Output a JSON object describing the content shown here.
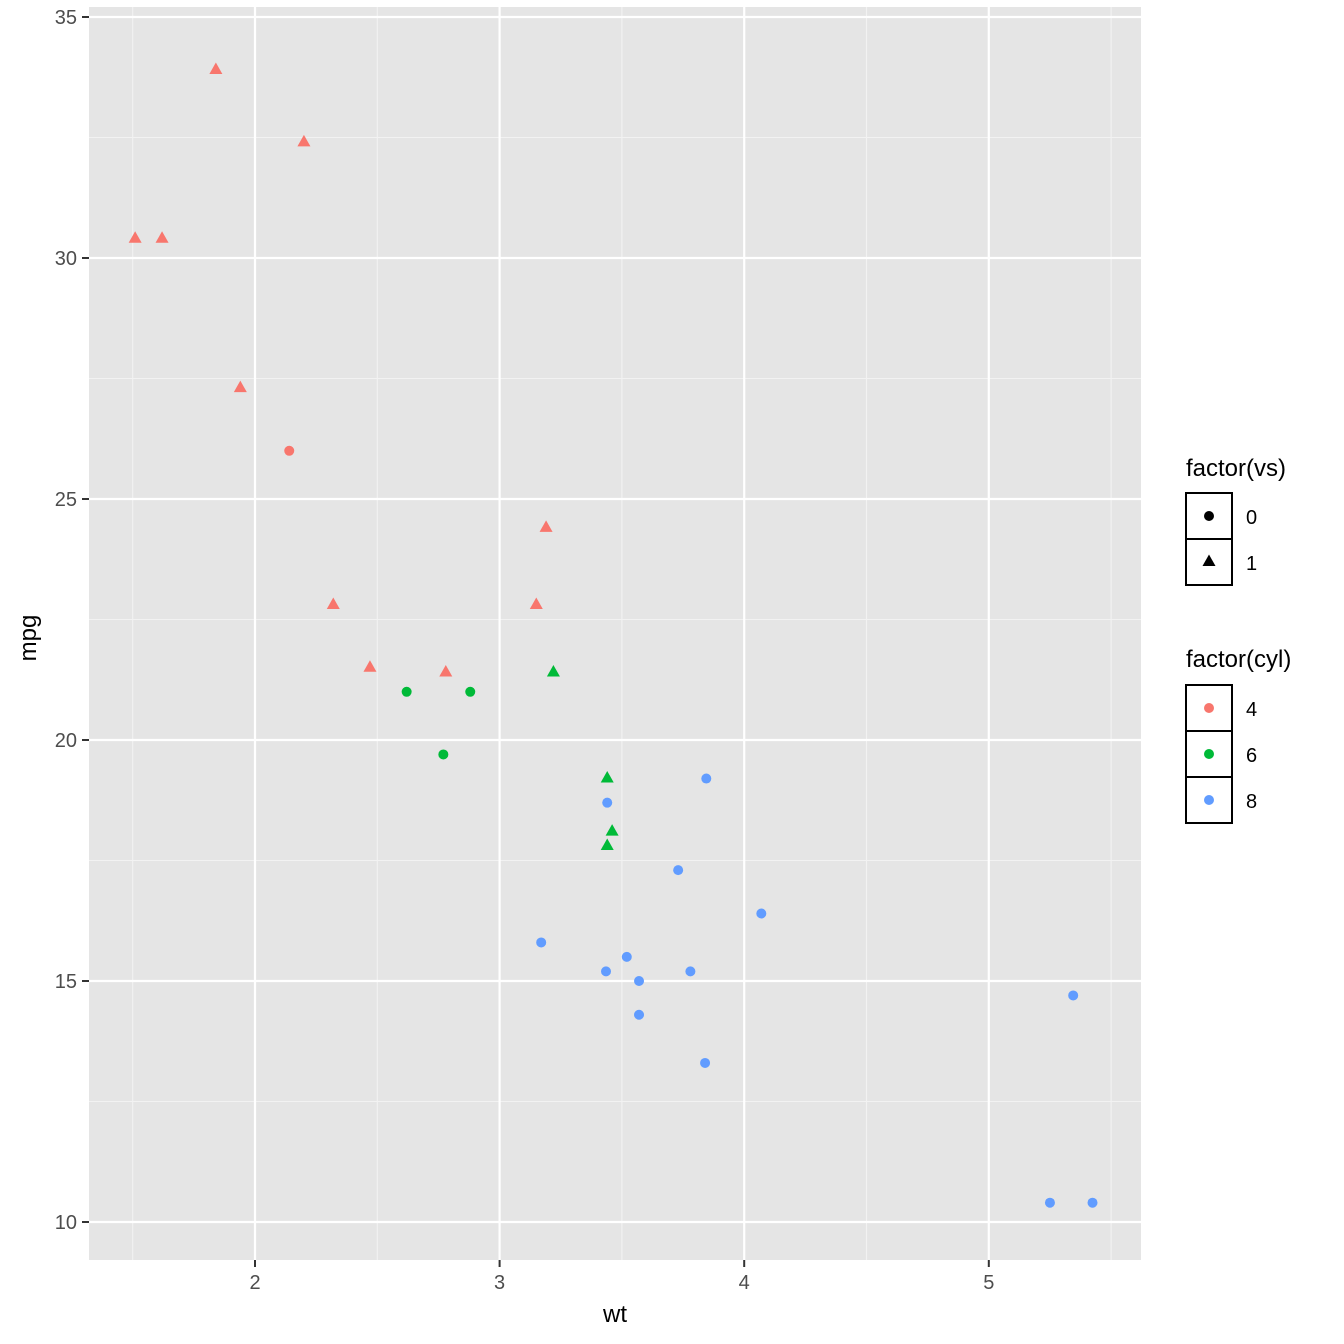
{
  "chart_data": {
    "type": "scatter",
    "xlabel": "wt",
    "ylabel": "mpg",
    "xlim": [
      1.3,
      5.6
    ],
    "ylim": [
      8.5,
      35.3
    ],
    "x_ticks": [
      2,
      3,
      4,
      5
    ],
    "y_ticks": [
      10,
      15,
      20,
      25,
      30,
      35
    ],
    "grid": true,
    "panel_background": "#e5e5e5",
    "legend_position": "right",
    "legends": [
      {
        "title": "factor(vs)",
        "aesthetic": "shape",
        "entries": [
          {
            "label": "0",
            "shape": "circle"
          },
          {
            "label": "1",
            "shape": "triangle"
          }
        ]
      },
      {
        "title": "factor(cyl)",
        "aesthetic": "color",
        "entries": [
          {
            "label": "4",
            "color": "#F8766D"
          },
          {
            "label": "6",
            "color": "#00BA38"
          },
          {
            "label": "8",
            "color": "#619CFF"
          }
        ]
      }
    ],
    "points": [
      {
        "x": 1.51,
        "y": 30.4,
        "cyl": "4",
        "vs": "1"
      },
      {
        "x": 1.62,
        "y": 30.4,
        "cyl": "4",
        "vs": "1"
      },
      {
        "x": 1.84,
        "y": 33.9,
        "cyl": "4",
        "vs": "1"
      },
      {
        "x": 1.94,
        "y": 27.3,
        "cyl": "4",
        "vs": "1"
      },
      {
        "x": 2.14,
        "y": 26.0,
        "cyl": "4",
        "vs": "0"
      },
      {
        "x": 2.2,
        "y": 32.4,
        "cyl": "4",
        "vs": "1"
      },
      {
        "x": 2.32,
        "y": 22.8,
        "cyl": "4",
        "vs": "1"
      },
      {
        "x": 2.47,
        "y": 21.5,
        "cyl": "4",
        "vs": "1"
      },
      {
        "x": 2.78,
        "y": 21.4,
        "cyl": "4",
        "vs": "1"
      },
      {
        "x": 3.15,
        "y": 22.8,
        "cyl": "4",
        "vs": "1"
      },
      {
        "x": 3.19,
        "y": 24.4,
        "cyl": "4",
        "vs": "1"
      },
      {
        "x": 2.62,
        "y": 21.0,
        "cyl": "6",
        "vs": "0"
      },
      {
        "x": 2.77,
        "y": 19.7,
        "cyl": "6",
        "vs": "0"
      },
      {
        "x": 2.88,
        "y": 21.0,
        "cyl": "6",
        "vs": "0"
      },
      {
        "x": 3.22,
        "y": 21.4,
        "cyl": "6",
        "vs": "1"
      },
      {
        "x": 3.44,
        "y": 19.2,
        "cyl": "6",
        "vs": "1"
      },
      {
        "x": 3.44,
        "y": 17.8,
        "cyl": "6",
        "vs": "1"
      },
      {
        "x": 3.46,
        "y": 18.1,
        "cyl": "6",
        "vs": "1"
      },
      {
        "x": 3.17,
        "y": 15.8,
        "cyl": "8",
        "vs": "0"
      },
      {
        "x": 3.44,
        "y": 18.7,
        "cyl": "8",
        "vs": "0"
      },
      {
        "x": 3.435,
        "y": 15.2,
        "cyl": "8",
        "vs": "0"
      },
      {
        "x": 3.52,
        "y": 15.5,
        "cyl": "8",
        "vs": "0"
      },
      {
        "x": 3.57,
        "y": 15.0,
        "cyl": "8",
        "vs": "0"
      },
      {
        "x": 3.57,
        "y": 14.3,
        "cyl": "8",
        "vs": "0"
      },
      {
        "x": 3.73,
        "y": 17.3,
        "cyl": "8",
        "vs": "0"
      },
      {
        "x": 3.78,
        "y": 15.2,
        "cyl": "8",
        "vs": "0"
      },
      {
        "x": 3.84,
        "y": 13.3,
        "cyl": "8",
        "vs": "0"
      },
      {
        "x": 3.845,
        "y": 19.2,
        "cyl": "8",
        "vs": "0"
      },
      {
        "x": 4.07,
        "y": 16.4,
        "cyl": "8",
        "vs": "0"
      },
      {
        "x": 5.25,
        "y": 10.4,
        "cyl": "8",
        "vs": "0"
      },
      {
        "x": 5.345,
        "y": 14.7,
        "cyl": "8",
        "vs": "0"
      },
      {
        "x": 5.424,
        "y": 10.4,
        "cyl": "8",
        "vs": "0"
      }
    ]
  }
}
